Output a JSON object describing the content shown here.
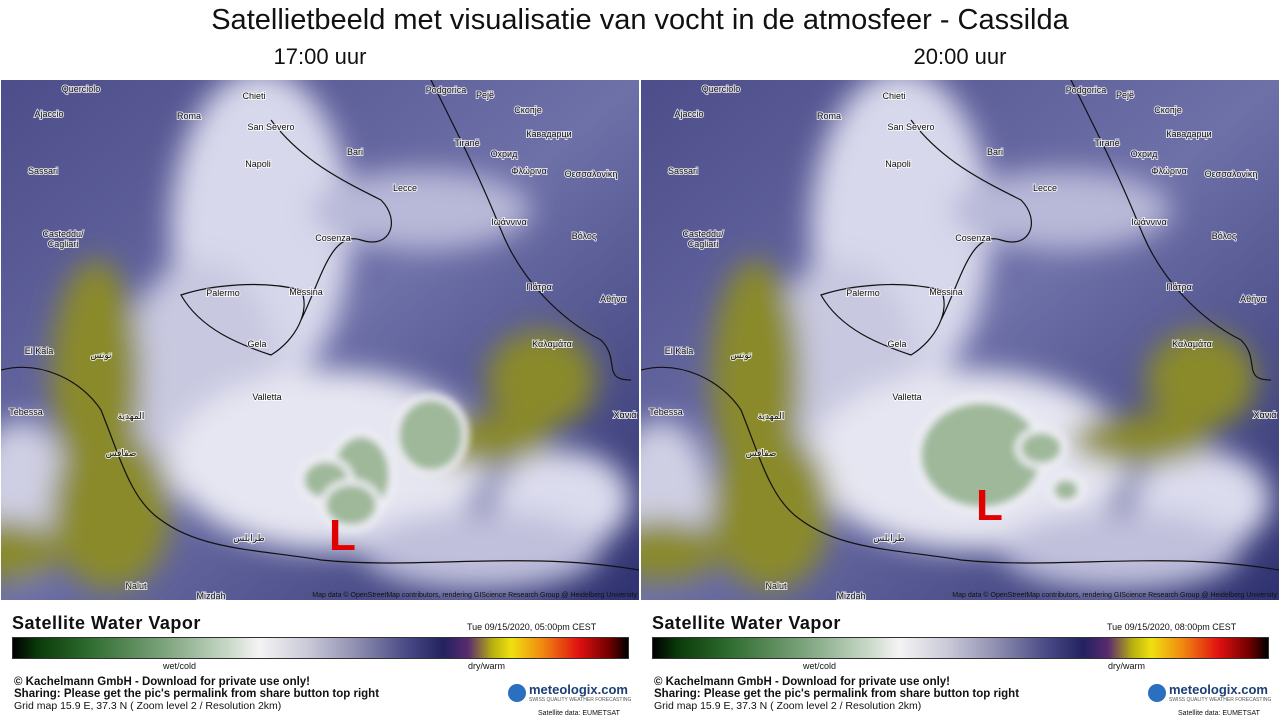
{
  "title": "Satellietbeeld met visualisatie van vocht in de atmosfeer - Cassilda",
  "cities": [
    "Querciolo",
    "Ajaccio",
    "Roma",
    "Chieti",
    "Podgorica",
    "Pejë",
    "Скопје",
    "San Severo",
    "Кавадарци",
    "Sassari",
    "Napoli",
    "Bari",
    "Tiranë",
    "Охрид",
    "Φλώρινα",
    "Θεσσαλονίκη",
    "Lecce",
    "Ιωάννινα",
    "Casteddu/",
    "Cagliari",
    "Cosenza",
    "Βόλος",
    "Palermo",
    "Messina",
    "Πάτρα",
    "Αθήνα",
    "El Kala",
    "تونس",
    "Gela",
    "Καλαμάτα",
    "Valletta",
    "Tebessa",
    "المهدية",
    "Χανιά",
    "صفاقس",
    "طرابلس",
    "Nalut",
    "Mizdah"
  ],
  "map_credit": "Map data © OpenStreetMap contributors, rendering GIScience Research Group @ Heidelberg University",
  "legend": {
    "title": "Satellite Water Vapor",
    "wet_label": "wet/cold",
    "dry_label": "dry/warm"
  },
  "footer": {
    "copyright": "© Kachelmann GmbH - Download for private use only!",
    "sharing": "Sharing: Please get the pic's permalink from share button top right",
    "grid": "Grid map 15.9 E, 37.3 N ( Zoom level 2 / Resolution 2km)",
    "brand": "meteologix.com",
    "brand_tag": "SWISS QUALITY WEATHER FORECASTING",
    "satellite": "Satellite data: EUMETSAT"
  },
  "panels": [
    {
      "time": "17:00 uur",
      "marker": "L",
      "timestamp": "Tue 09/15/2020, 05:00pm CEST"
    },
    {
      "time": "20:00 uur",
      "marker": "L",
      "timestamp": "Tue 09/15/2020, 08:00pm CEST"
    }
  ]
}
